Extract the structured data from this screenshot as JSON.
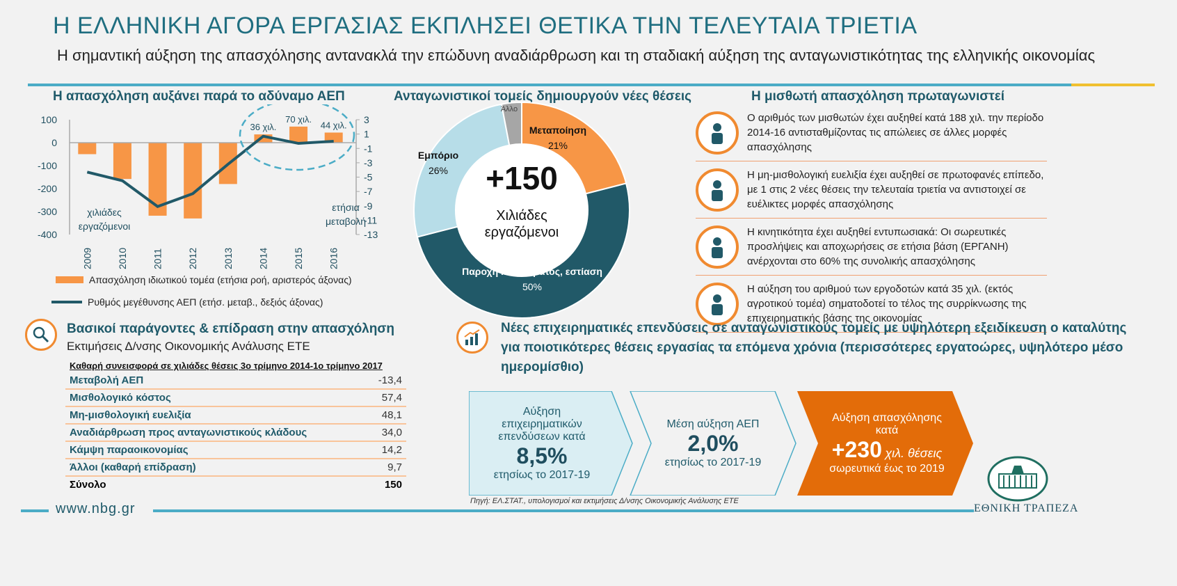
{
  "header": {
    "title": "Η ΕΛΛΗΝΙΚΗ ΑΓΟΡΑ ΕΡΓΑΣΙΑΣ ΕΚΠΛΗΣΕΙ ΘΕΤΙΚΑ ΤΗΝ ΤΕΛΕΥΤΑΙΑ ΤΡΙΕΤΙΑ",
    "subtitle": "Η σημαντική αύξηση της απασχόλησης αντανακλά την επώδυνη αναδιάρθρωση και τη σταδιακή αύξηση της ανταγωνιστικότητας της ελληνικής οικονομίας"
  },
  "chart_data": [
    {
      "type": "bar+line",
      "title": "Η απασχόληση αυξάνει παρά το αδύναμο ΑΕΠ",
      "categories": [
        "2009",
        "2010",
        "2011",
        "2012",
        "2013",
        "2014",
        "2015",
        "2016"
      ],
      "series": [
        {
          "name": "Απασχόληση ιδιωτικού τομέα (ετήσια ροή, αριστερός άξονας)",
          "type": "bar",
          "axis": "left",
          "values": [
            -50,
            -158,
            -318,
            -330,
            -180,
            36,
            70,
            44
          ],
          "color": "#f79646"
        },
        {
          "name": "Ρυθμός μεγέθυνσης ΑΕΠ (ετήσ. μεταβ., δεξιός άξονας)",
          "type": "line",
          "axis": "right",
          "values": [
            -4.3,
            -5.5,
            -9.1,
            -7.3,
            -3.2,
            0.7,
            -0.3,
            0.0
          ],
          "color": "#215968"
        }
      ],
      "ylim_left": [
        -400,
        100
      ],
      "yticks_left": [
        "100",
        "0",
        "-100",
        "-200",
        "-300",
        "-400"
      ],
      "ylim_right": [
        -13,
        3
      ],
      "yticks_right": [
        "3",
        "1",
        "-1",
        "-3",
        "-5",
        "-7",
        "-9",
        "-11",
        "-13"
      ],
      "ylabel_left": "χιλιάδες εργαζόμενοι",
      "ylabel_right": "ετήσια μεταβολή",
      "bar_labels": {
        "2014": "36 χιλ.",
        "2015": "70 χιλ.",
        "2016": "44 χιλ."
      }
    },
    {
      "type": "pie",
      "title": "Ανταγωνιστικοί τομείς δημιουργούν νέες θέσεις",
      "center_value": "+150",
      "center_label": "Χιλιάδες εργαζόμενοι",
      "slices": [
        {
          "label": "Μεταποίηση",
          "value": 21,
          "pct": "21%",
          "color": "#f79646"
        },
        {
          "label": "Παροχή καταλύματος, εστίαση",
          "value": 50,
          "pct": "50%",
          "color": "#215968"
        },
        {
          "label": "Εμπόριο",
          "value": 26,
          "pct": "26%",
          "color": "#b7dde8"
        },
        {
          "label": "Άλλο",
          "value": 3,
          "pct": "",
          "color": "#a6a6a6"
        }
      ]
    }
  ],
  "right": {
    "title": "Η μισθωτή απασχόληση πρωταγωνιστεί",
    "items": [
      {
        "icon": "bar-growth-people-icon",
        "text": "Ο αριθμός των μισθωτών έχει αυξηθεί κατά 188 χιλ. την περίοδο 2014-16 αντισταθμίζοντας τις απώλειες σε άλλες μορφές απασχόλησης"
      },
      {
        "icon": "clock-person-icon",
        "text": "Η μη-μισθολογική ευελιξία έχει αυξηθεί σε πρωτοφανές επίπεδο, με 1 στις 2 νέες θέσεις την τελευταία τριετία να αντιστοιχεί σε ευέλικτες μορφές απασχόλησης"
      },
      {
        "icon": "person-arrows-icon",
        "text": "Η κινητικότητα έχει αυξηθεί εντυπωσιακά: Οι σωρευτικές προσλήψεις και αποχωρήσεις σε ετήσια βάση (ΕΡΓΑΝΗ) ανέρχονται στο 60% της συνολικής απασχόλησης"
      },
      {
        "icon": "group-icon",
        "text": "Η αύξηση του αριθμού των εργοδοτών κατά 35 χιλ. (εκτός αγροτικού τομέα) σηματοδοτεί το τέλος της συρρίκνωσης της επιχειρηματικής βάσης της οικονομίας"
      }
    ]
  },
  "factors": {
    "title": "Βασικοί παράγοντες & επίδραση στην απασχόληση",
    "subtitle": "Εκτιμήσεις Δ/νσης Οικονομικής Ανάλυσης ΕΤΕ",
    "table_header": "Καθαρή συνεισφορά σε χιλιάδες θέσεις 3ο τρίμηνο 2014-1ο τρίμηνο 2017",
    "rows": [
      {
        "label": "Μεταβολή ΑΕΠ",
        "value": "-13,4"
      },
      {
        "label": "Μισθολογικό κόστος",
        "value": "57,4"
      },
      {
        "label": "Μη-μισθολογική ευελιξία",
        "value": "48,1"
      },
      {
        "label": "Αναδιάρθρωση προς ανταγωνιστικούς κλάδους",
        "value": "34,0"
      },
      {
        "label": "Κάμψη παραοικονομίας",
        "value": "14,2"
      },
      {
        "label": "Άλλοι (καθαρή επίδραση)",
        "value": "9,7"
      }
    ],
    "total": {
      "label": "Σύνολο",
      "value": "150"
    }
  },
  "outlook": {
    "title": "Νέες επιχειρηματικές επενδύσεις σε ανταγωνιστικούς τομείς με υψηλότερη εξειδίκευση ο καταλύτης για ποιοτικότερες θέσεις εργασίας τα επόμενα χρόνια (περισσότερες εργατοώρες, υψηλότερο μέσο ημερομίσθιο)",
    "boxes": [
      {
        "top": "Αύξηση επιχειρηματικών επενδύσεων κατά",
        "big": "8,5%",
        "bottom": "ετησίως το 2017-19"
      },
      {
        "top": "Μέση αύξηση ΑΕΠ",
        "big": "2,0%",
        "bottom": "ετησίως το 2017-19"
      },
      {
        "top": "Αύξηση απασχόλησης κατά",
        "big": "+230",
        "unit": "χιλ. θέσεις",
        "bottom": "σωρευτικά έως το 2019"
      }
    ]
  },
  "footer": {
    "url": "www.nbg.gr",
    "source": "Πηγή: ΕΛ.ΣΤΑΤ., υπολογισμοί και εκτιμήσεις Δ/νσης Οικονομικής Ανάλυσης ΕΤΕ",
    "logo": "ΕΘΝΙΚΗ ΤΡΑΠΕΖΑ"
  },
  "colors": {
    "accent": "#4bacc6",
    "orange": "#f79646",
    "dark": "#215968",
    "deep_orange": "#e36c09"
  }
}
